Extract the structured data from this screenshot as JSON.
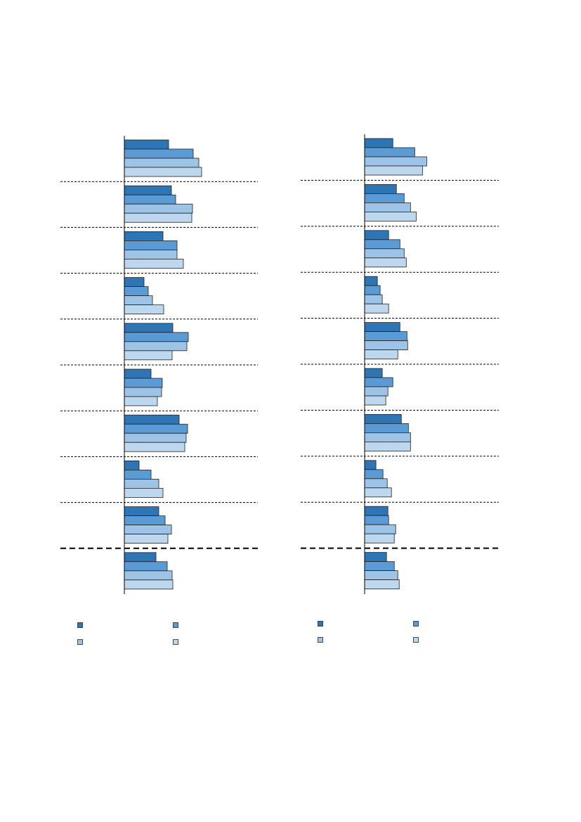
{
  "chart_data": [
    {
      "type": "bar",
      "orientation": "horizontal",
      "categories": [
        null,
        null,
        null,
        null,
        null,
        null,
        null,
        null,
        null,
        null
      ],
      "xlim": [
        0,
        190
      ],
      "series": [
        {
          "color": "#2e75b6",
          "values": [
            63,
            67,
            55,
            28,
            69,
            38,
            78,
            21,
            49,
            45
          ]
        },
        {
          "color": "#5b9bd5",
          "values": [
            98,
            73,
            75,
            34,
            91,
            54,
            90,
            38,
            58,
            61
          ]
        },
        {
          "color": "#9dc3e6",
          "values": [
            106,
            97,
            75,
            40,
            89,
            53,
            88,
            49,
            67,
            68
          ]
        },
        {
          "color": "#bdd7ee",
          "values": [
            110,
            96,
            84,
            56,
            68,
            47,
            86,
            55,
            62,
            69
          ]
        }
      ]
    },
    {
      "type": "bar",
      "orientation": "horizontal",
      "categories": [
        null,
        null,
        null,
        null,
        null,
        null,
        null,
        null,
        null,
        null
      ],
      "xlim": [
        0,
        190
      ],
      "series": [
        {
          "color": "#2e75b6",
          "values": [
            40,
            45,
            34,
            18,
            50,
            25,
            52,
            16,
            33,
            31
          ]
        },
        {
          "color": "#5b9bd5",
          "values": [
            71,
            56,
            50,
            22,
            60,
            40,
            62,
            26,
            34,
            42
          ]
        },
        {
          "color": "#9dc3e6",
          "values": [
            88,
            65,
            56,
            25,
            61,
            33,
            65,
            32,
            44,
            47
          ]
        },
        {
          "color": "#bdd7ee",
          "values": [
            82,
            73,
            59,
            34,
            47,
            30,
            65,
            38,
            42,
            49
          ]
        }
      ]
    }
  ]
}
